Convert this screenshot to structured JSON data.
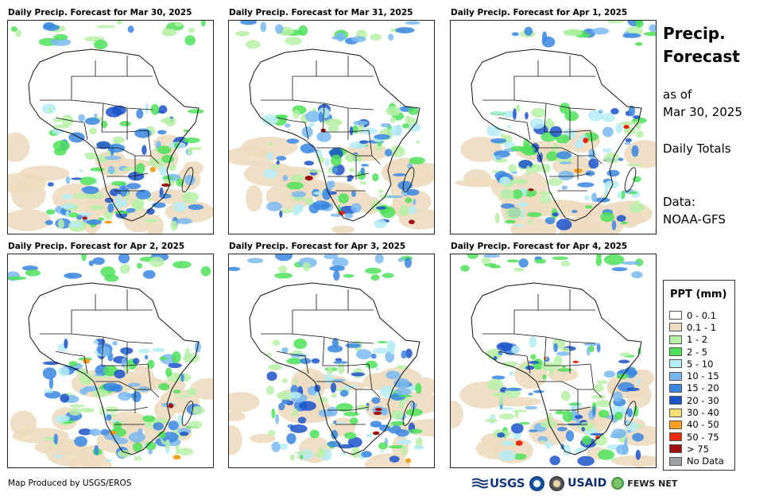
{
  "panels": [
    {
      "title": "Daily Precip. Forecast for Mar 30, 2025",
      "seed": 11
    },
    {
      "title": "Daily Precip. Forecast for Mar 31, 2025",
      "seed": 23
    },
    {
      "title": "Daily Precip. Forecast for Apr 1, 2025",
      "seed": 37
    },
    {
      "title": "Daily Precip. Forecast for Apr 2, 2025",
      "seed": 41
    },
    {
      "title": "Daily Precip. Forecast for Apr 3, 2025",
      "seed": 53
    },
    {
      "title": "Daily Precip. Forecast for Apr 4, 2025",
      "seed": 67
    }
  ],
  "side": {
    "title_line1": "Precip.",
    "title_line2": "Forecast",
    "asof_line1": "as of",
    "asof_line2": "Mar 30, 2025",
    "daily": "Daily Totals",
    "data_line1": "Data:",
    "data_line2": "NOAA-GFS"
  },
  "legend": {
    "title": "PPT (mm)",
    "items": [
      {
        "label": "0 - 0.1",
        "color": "#ffffff"
      },
      {
        "label": "0.1 - 1",
        "color": "#ecdcc0"
      },
      {
        "label": "1 - 2",
        "color": "#b8f0a8"
      },
      {
        "label": "2 - 5",
        "color": "#4fe05a"
      },
      {
        "label": "5 - 10",
        "color": "#b6ecf5"
      },
      {
        "label": "10 - 15",
        "color": "#7ab8f0"
      },
      {
        "label": "15 - 20",
        "color": "#3a86e0"
      },
      {
        "label": "20 - 30",
        "color": "#1c52c8"
      },
      {
        "label": "30 - 40",
        "color": "#f5e07a"
      },
      {
        "label": "40 - 50",
        "color": "#f5a020"
      },
      {
        "label": "50 - 75",
        "color": "#ee2a10"
      },
      {
        "label": "> 75",
        "color": "#a01010"
      },
      {
        "label": "No Data",
        "color": "#a0a0a0"
      }
    ]
  },
  "footer": {
    "credit": "Map Produced by USGS/EROS",
    "logo_usgs": "USGS",
    "logo_usaid": "USAID",
    "logo_fews": "FEWS NET"
  }
}
